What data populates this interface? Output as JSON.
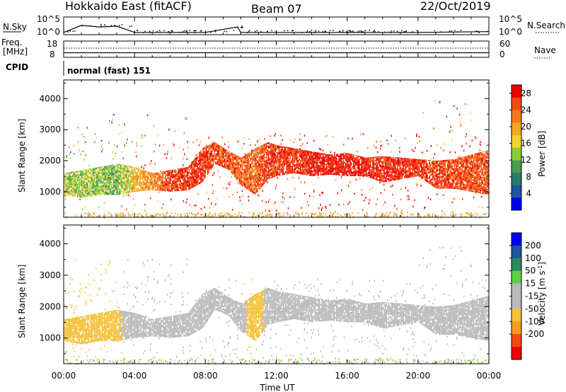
{
  "header": {
    "radar": "Hokkaido East (fitACF)",
    "beam": "Beam 07",
    "date": "22/Oct/2019"
  },
  "strip_labels": {
    "nsky": "N.Sky",
    "nsky_ticks": [
      "10^5",
      "10^0"
    ],
    "nsearch": "N.Search",
    "freq": "Freq.",
    "freq_unit": "[MHz]",
    "freq_ticks": [
      "18",
      "8"
    ],
    "nave": "Nave",
    "nave_ticks": [
      "60",
      "0"
    ],
    "cpid": "CPID",
    "cpid_value": "normal (fast) 151"
  },
  "colors": {
    "power_scale": [
      "#0000ee",
      "#1f54a0",
      "#2a7a6a",
      "#4a9a52",
      "#8ccc3a",
      "#f2d233",
      "#f4a624",
      "#f47a1e",
      "#f24a14",
      "#ee0000"
    ],
    "velocity_scale": [
      "#ee0000",
      "#f24a14",
      "#f79a1e",
      "#f4c23a",
      "#bbbbbb",
      "#bbbbbb",
      "#5ad045",
      "#2a8a5a",
      "#1f54a0",
      "#0000ee"
    ]
  },
  "chart_data": [
    {
      "type": "line",
      "name": "nsky-nsearch-strip",
      "x_range_hours": [
        0,
        24
      ],
      "y_ticks": [
        "10^5",
        "10^0"
      ],
      "x": [
        0,
        1,
        2,
        3,
        4,
        6,
        8,
        9.8,
        10,
        12,
        16,
        20,
        24
      ],
      "values": [
        0.1,
        0.55,
        0.45,
        0.5,
        0.1,
        0.1,
        0.1,
        0.45,
        0.1,
        0.1,
        0.1,
        0.1,
        0.15
      ]
    },
    {
      "type": "line",
      "name": "freq-nave-strip",
      "x_range_hours": [
        0,
        24
      ],
      "freq_ticks": [
        18,
        8
      ],
      "nave_ticks": [
        60,
        0
      ],
      "freq_value": 10.8,
      "nave_value": 34
    },
    {
      "type": "heatmap",
      "name": "power",
      "xlabel": "",
      "ylabel": "Slant Range [km]",
      "x_range_hours": [
        0,
        24
      ],
      "ylim": [
        180,
        4600
      ],
      "y_ticks": [
        1000,
        2000,
        3000,
        4000
      ],
      "colorbar_label": "Power [dB]",
      "colorbar_ticks": [
        4,
        8,
        12,
        16,
        20,
        24,
        28
      ],
      "colorbar_range": [
        0,
        30
      ],
      "echo_band": {
        "t": [
          0,
          1,
          2,
          3,
          4,
          5,
          6,
          7,
          7.8,
          8.5,
          9.3,
          10,
          10.8,
          11.5,
          12,
          13,
          14,
          15,
          16,
          17,
          18,
          19,
          20,
          21,
          22,
          23,
          24
        ],
        "lower": [
          900,
          800,
          900,
          900,
          1000,
          1050,
          1000,
          1050,
          1300,
          1900,
          1700,
          1200,
          900,
          1400,
          1500,
          1600,
          1500,
          1550,
          1500,
          1500,
          1300,
          1400,
          1500,
          1100,
          1100,
          1000,
          900
        ],
        "upper": [
          1600,
          1700,
          1800,
          1900,
          1800,
          1600,
          1700,
          1800,
          2400,
          2600,
          2300,
          2100,
          2400,
          2600,
          2500,
          2400,
          2300,
          2200,
          2250,
          2100,
          2150,
          2100,
          2050,
          2000,
          2050,
          2200,
          2350
        ],
        "power": [
          14,
          14,
          13,
          12,
          18,
          22,
          26,
          27,
          27,
          26,
          25,
          24,
          24,
          26,
          27,
          27,
          28,
          28,
          28,
          28,
          27,
          27,
          27,
          26,
          26,
          25,
          25
        ]
      }
    },
    {
      "type": "heatmap",
      "name": "velocity",
      "xlabel": "Time UT",
      "ylabel": "Slant Range [km]",
      "x_range_hours": [
        0,
        24
      ],
      "x_ticks": [
        "00:00",
        "04:00",
        "08:00",
        "12:00",
        "16:00",
        "20:00",
        "00:00"
      ],
      "ylim": [
        180,
        4600
      ],
      "y_ticks": [
        1000,
        2000,
        3000,
        4000
      ],
      "colorbar_label": "Velocity [m s^-1]",
      "colorbar_ticks": [
        200,
        100,
        50,
        15,
        -15,
        -50,
        -100,
        -200
      ],
      "echo_band": {
        "t": [
          0,
          1,
          2,
          3,
          4,
          5,
          6,
          7,
          7.8,
          8.5,
          9.3,
          10,
          10.8,
          11.5,
          12,
          13,
          14,
          15,
          16,
          17,
          18,
          19,
          20,
          21,
          22,
          23,
          24
        ],
        "lower": [
          900,
          800,
          900,
          900,
          1000,
          1050,
          1000,
          1050,
          1300,
          1900,
          1700,
          1200,
          900,
          1400,
          1500,
          1600,
          1500,
          1550,
          1500,
          1500,
          1300,
          1400,
          1500,
          1100,
          1100,
          1000,
          900
        ],
        "upper": [
          1600,
          1700,
          1800,
          1900,
          1800,
          1600,
          1700,
          1800,
          2400,
          2600,
          2300,
          2100,
          2400,
          2600,
          2500,
          2400,
          2300,
          2200,
          2250,
          2100,
          2150,
          2100,
          2050,
          2000,
          2050,
          2200,
          2350
        ],
        "velocity": [
          -20,
          -30,
          -20,
          -20,
          0,
          0,
          0,
          0,
          0,
          0,
          0,
          0,
          -40,
          0,
          0,
          0,
          0,
          0,
          0,
          0,
          0,
          0,
          0,
          0,
          0,
          0,
          0
        ]
      }
    }
  ]
}
